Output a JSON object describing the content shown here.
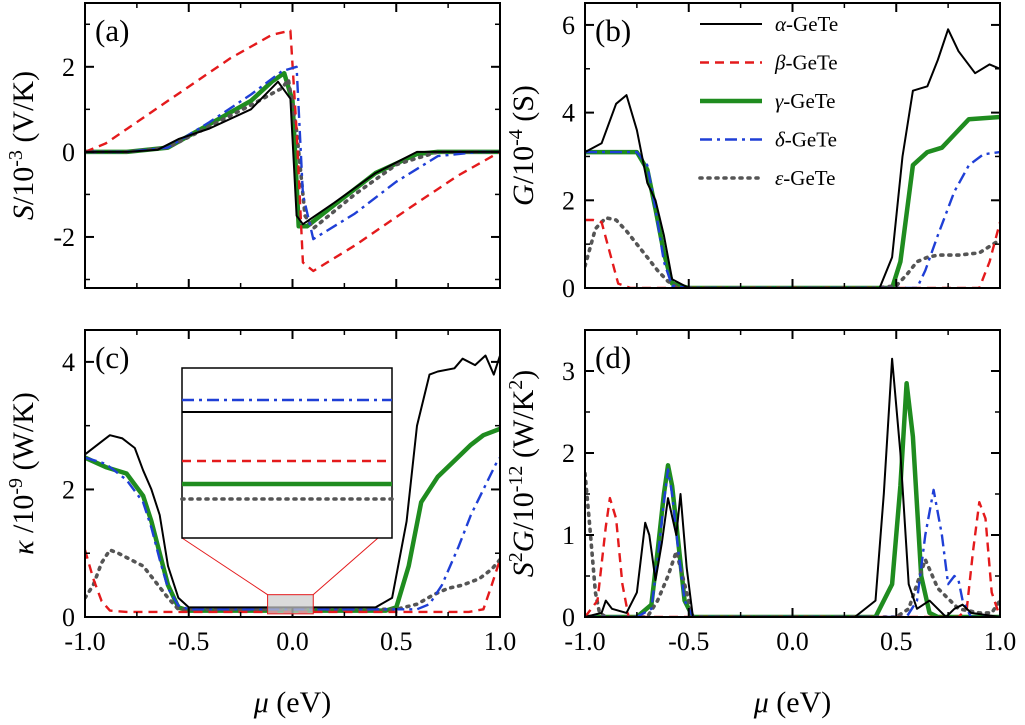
{
  "chart_data": [
    {
      "panel": "(a)",
      "type": "line",
      "ylabel_sym": "S",
      "ylabel_mid": "/10",
      "ylabel_exp": "-3",
      "ylabel_unit": " (V/K)",
      "xlim": [
        -1.0,
        1.0
      ],
      "ylim": [
        -3.2,
        3.5
      ],
      "xticks": [
        -1.0,
        -0.5,
        0.0,
        0.5,
        1.0
      ],
      "yticks": [
        -2,
        0,
        2
      ],
      "ytick_labels": [
        "-2",
        "0",
        "2"
      ],
      "series": [
        {
          "name": "α-GeTe",
          "color": "#000000",
          "x": [
            -1.0,
            -0.8,
            -0.65,
            -0.55,
            -0.4,
            -0.2,
            -0.07,
            -0.01,
            0.02,
            0.05,
            0.2,
            0.4,
            0.6,
            0.8,
            1.0
          ],
          "y": [
            0,
            0,
            0.05,
            0.3,
            0.55,
            1.0,
            1.65,
            1.25,
            -1.5,
            -1.7,
            -1.2,
            -0.5,
            0,
            0,
            0
          ]
        },
        {
          "name": "β-GeTe",
          "color": "#e41a1c",
          "x": [
            -1.0,
            -0.9,
            -0.6,
            -0.3,
            -0.1,
            -0.01,
            0.02,
            0.05,
            0.1,
            0.3,
            0.6,
            0.8,
            1.0
          ],
          "y": [
            0,
            0.2,
            1.2,
            2.2,
            2.75,
            2.85,
            0.5,
            -2.6,
            -2.8,
            -2.2,
            -1.2,
            -0.55,
            0
          ]
        },
        {
          "name": "γ-GeTe",
          "color": "#1f8c1f",
          "x": [
            -1.0,
            -0.8,
            -0.6,
            -0.4,
            -0.2,
            -0.1,
            -0.04,
            0.0,
            0.03,
            0.07,
            0.2,
            0.4,
            0.6,
            0.7,
            1.0
          ],
          "y": [
            0,
            0,
            0.1,
            0.65,
            1.2,
            1.65,
            1.85,
            1.2,
            -1.75,
            -1.75,
            -1.25,
            -0.5,
            -0.05,
            0,
            0
          ]
        },
        {
          "name": "δ-GeTe",
          "color": "#1f3fd6",
          "x": [
            -1.0,
            -0.8,
            -0.6,
            -0.4,
            -0.2,
            -0.05,
            0.02,
            0.05,
            0.1,
            0.3,
            0.5,
            0.7,
            0.9,
            1.0
          ],
          "y": [
            0,
            0,
            0.1,
            0.7,
            1.35,
            1.9,
            2.0,
            -1.0,
            -2.05,
            -1.45,
            -0.7,
            -0.1,
            0,
            0
          ]
        },
        {
          "name": "ε-GeTe",
          "color": "#555555",
          "x": [
            -1.0,
            -0.8,
            -0.6,
            -0.4,
            -0.2,
            -0.05,
            -0.02,
            0.02,
            0.06,
            0.1,
            0.3,
            0.5,
            0.7,
            0.8,
            1.0
          ],
          "y": [
            0,
            0,
            0.1,
            0.6,
            1.1,
            1.5,
            1.7,
            0.5,
            -1.5,
            -1.8,
            -1.0,
            -0.3,
            0,
            0,
            0
          ]
        }
      ]
    },
    {
      "panel": "(b)",
      "type": "line",
      "ylabel_sym": "G",
      "ylabel_mid": "/10",
      "ylabel_exp": "-4",
      "ylabel_unit": " (S)",
      "xlim": [
        -1.0,
        1.0
      ],
      "ylim": [
        0,
        6.5
      ],
      "xticks": [
        -1.0,
        -0.5,
        0.0,
        0.5,
        1.0
      ],
      "yticks": [
        0,
        2,
        4,
        6
      ],
      "ytick_labels": [
        "0",
        "2",
        "4",
        "6"
      ],
      "series": [
        {
          "name": "α-GeTe",
          "color": "#000000",
          "x": [
            -1.0,
            -0.92,
            -0.85,
            -0.8,
            -0.75,
            -0.7,
            -0.66,
            -0.62,
            -0.58,
            -0.5,
            0.3,
            0.42,
            0.48,
            0.53,
            0.58,
            0.65,
            0.7,
            0.75,
            0.8,
            0.88,
            0.95,
            1.0
          ],
          "y": [
            3.1,
            3.3,
            4.2,
            4.4,
            3.6,
            2.4,
            2.0,
            1.2,
            0.2,
            0,
            0,
            0,
            0.7,
            3.0,
            4.5,
            4.6,
            5.2,
            5.9,
            5.4,
            4.9,
            5.1,
            5.0
          ]
        },
        {
          "name": "β-GeTe",
          "color": "#e41a1c",
          "x": [
            -1.0,
            -0.96,
            -0.92,
            -0.88,
            -0.84,
            -0.78,
            -0.5,
            0.9,
            0.95,
            1.0
          ],
          "y": [
            1.55,
            1.55,
            1.5,
            0.8,
            0.1,
            0,
            0,
            0,
            0.6,
            1.5
          ]
        },
        {
          "name": "γ-GeTe",
          "color": "#1f8c1f",
          "x": [
            -1.0,
            -0.9,
            -0.75,
            -0.7,
            -0.66,
            -0.62,
            -0.58,
            -0.5,
            0.4,
            0.48,
            0.52,
            0.58,
            0.65,
            0.72,
            0.78,
            0.85,
            1.0
          ],
          "y": [
            3.1,
            3.1,
            3.1,
            2.7,
            1.8,
            0.8,
            0.1,
            0,
            0,
            0,
            0.6,
            2.8,
            3.1,
            3.2,
            3.5,
            3.85,
            3.9
          ]
        },
        {
          "name": "δ-GeTe",
          "color": "#1f3fd6",
          "x": [
            -1.0,
            -0.9,
            -0.75,
            -0.7,
            -0.66,
            -0.62,
            -0.58,
            -0.5,
            0.55,
            0.6,
            0.64,
            0.7,
            0.78,
            0.85,
            0.92,
            1.0
          ],
          "y": [
            3.1,
            3.1,
            3.1,
            2.8,
            1.8,
            0.6,
            0.05,
            0,
            0,
            0,
            0.4,
            1.2,
            2.2,
            2.8,
            3.05,
            3.1
          ]
        },
        {
          "name": "ε-GeTe",
          "color": "#555555",
          "x": [
            -1.0,
            -0.95,
            -0.9,
            -0.85,
            -0.8,
            -0.75,
            -0.7,
            -0.65,
            -0.6,
            -0.55,
            0.4,
            0.5,
            0.55,
            0.6,
            0.65,
            0.7,
            0.8,
            0.9,
            1.0
          ],
          "y": [
            0.5,
            1.35,
            1.6,
            1.55,
            1.3,
            1.0,
            0.7,
            0.4,
            0.15,
            0,
            0,
            0.05,
            0.3,
            0.6,
            0.7,
            0.75,
            0.75,
            0.8,
            1.1
          ]
        }
      ]
    },
    {
      "panel": "(c)",
      "type": "line",
      "ylabel_sym": "κ",
      "ylabel_mid": " /10",
      "ylabel_exp": "-9",
      "ylabel_unit": " (W/K)",
      "xlim": [
        -1.0,
        1.0
      ],
      "ylim": [
        0,
        4.5
      ],
      "xticks": [
        -1.0,
        -0.5,
        0.0,
        0.5,
        1.0
      ],
      "yticks": [
        0,
        2,
        4
      ],
      "ytick_labels": [
        "0",
        "2",
        "4"
      ],
      "series": [
        {
          "name": "α-GeTe",
          "color": "#000000",
          "x": [
            -1.0,
            -0.92,
            -0.88,
            -0.82,
            -0.76,
            -0.72,
            -0.68,
            -0.64,
            -0.6,
            -0.55,
            -0.5,
            0.4,
            0.48,
            0.55,
            0.6,
            0.66,
            0.7,
            0.78,
            0.82,
            0.88,
            0.93,
            0.97,
            1.0
          ],
          "y": [
            2.55,
            2.75,
            2.85,
            2.8,
            2.65,
            2.3,
            2.0,
            1.6,
            0.8,
            0.3,
            0.15,
            0.15,
            0.3,
            1.5,
            3.0,
            3.8,
            3.85,
            3.9,
            4.05,
            3.95,
            4.1,
            3.8,
            4.1
          ]
        },
        {
          "name": "β-GeTe",
          "color": "#e41a1c",
          "x": [
            -1.0,
            -0.96,
            -0.92,
            -0.88,
            -0.8,
            -0.5,
            0.5,
            0.85,
            0.92,
            0.96,
            1.0
          ],
          "y": [
            1.05,
            0.6,
            0.25,
            0.1,
            0.08,
            0.08,
            0.08,
            0.08,
            0.12,
            0.5,
            0.9
          ]
        },
        {
          "name": "γ-GeTe",
          "color": "#1f8c1f",
          "x": [
            -1.0,
            -0.9,
            -0.8,
            -0.72,
            -0.68,
            -0.64,
            -0.6,
            -0.55,
            -0.5,
            0.45,
            0.5,
            0.56,
            0.62,
            0.7,
            0.78,
            0.86,
            0.92,
            1.0
          ],
          "y": [
            2.5,
            2.35,
            2.25,
            1.9,
            1.5,
            1.0,
            0.5,
            0.15,
            0.1,
            0.1,
            0.15,
            0.8,
            1.8,
            2.2,
            2.45,
            2.7,
            2.85,
            2.95
          ]
        },
        {
          "name": "δ-GeTe",
          "color": "#1f3fd6",
          "x": [
            -1.0,
            -0.9,
            -0.8,
            -0.72,
            -0.68,
            -0.64,
            -0.6,
            -0.55,
            -0.5,
            0.6,
            0.66,
            0.72,
            0.8,
            0.86,
            0.92,
            0.98,
            1.0
          ],
          "y": [
            2.5,
            2.4,
            2.15,
            1.8,
            1.4,
            0.9,
            0.45,
            0.18,
            0.12,
            0.12,
            0.2,
            0.5,
            1.1,
            1.6,
            2.0,
            2.4,
            2.5
          ]
        },
        {
          "name": "ε-GeTe",
          "color": "#555555",
          "x": [
            -1.0,
            -0.96,
            -0.92,
            -0.88,
            -0.84,
            -0.78,
            -0.72,
            -0.66,
            -0.6,
            -0.55,
            0.4,
            0.5,
            0.6,
            0.68,
            0.75,
            0.82,
            0.9,
            0.96,
            1.0
          ],
          "y": [
            0.3,
            0.5,
            0.85,
            1.05,
            1.0,
            0.9,
            0.8,
            0.55,
            0.3,
            0.12,
            0.12,
            0.12,
            0.2,
            0.35,
            0.45,
            0.5,
            0.6,
            0.75,
            0.9
          ]
        }
      ],
      "inset": {
        "zoom_x": [
          -0.12,
          0.1
        ],
        "zoom_y": [
          0.05,
          0.35
        ],
        "line_order": [
          "δ-GeTe",
          "α-GeTe",
          "β-GeTe",
          "γ-GeTe",
          "ε-GeTe"
        ]
      }
    },
    {
      "panel": "(d)",
      "type": "line",
      "ylabel_sym": "S",
      "ylabel_sup2": "2",
      "ylabel_sym2": "G",
      "ylabel_mid": "/10",
      "ylabel_exp": "-12",
      "ylabel_unit": " (W/K",
      "ylabel_unit_sup": "2",
      "ylabel_unit_end": ")",
      "xlim": [
        -1.0,
        1.0
      ],
      "ylim": [
        0,
        3.5
      ],
      "xticks": [
        -1.0,
        -0.5,
        0.0,
        0.5,
        1.0
      ],
      "xtick_labels": [
        "-1.0",
        "-0.5",
        "0.0",
        "0.5",
        "1.0"
      ],
      "yticks": [
        0,
        1,
        2,
        3
      ],
      "ytick_labels": [
        "0",
        "1",
        "2",
        "3"
      ],
      "series": [
        {
          "name": "α-GeTe",
          "color": "#000000",
          "x": [
            -1.0,
            -0.92,
            -0.9,
            -0.87,
            -0.8,
            -0.75,
            -0.71,
            -0.69,
            -0.66,
            -0.63,
            -0.6,
            -0.56,
            -0.54,
            -0.51,
            -0.48,
            0.3,
            0.4,
            0.44,
            0.48,
            0.52,
            0.56,
            0.6,
            0.66,
            0.7,
            0.74,
            0.78,
            0.82,
            0.86,
            1.0
          ],
          "y": [
            0,
            0.05,
            0.2,
            0.1,
            0.05,
            0.3,
            1.15,
            1.0,
            0.45,
            0.9,
            1.45,
            1.0,
            1.5,
            0.6,
            0,
            0,
            0.2,
            1.5,
            3.15,
            2.0,
            0.4,
            0.1,
            0.2,
            0.1,
            0,
            0.1,
            0.15,
            0.05,
            0
          ]
        },
        {
          "name": "β-GeTe",
          "color": "#e41a1c",
          "x": [
            -1.0,
            -0.94,
            -0.9,
            -0.88,
            -0.85,
            -0.82,
            -0.79,
            -0.7,
            0.8,
            0.84,
            0.87,
            0.9,
            0.93,
            0.96,
            1.0
          ],
          "y": [
            0,
            0.2,
            1.1,
            1.45,
            1.2,
            0.4,
            0,
            0,
            0,
            0.1,
            0.8,
            1.4,
            1.2,
            0.3,
            0
          ]
        },
        {
          "name": "γ-GeTe",
          "color": "#1f8c1f",
          "x": [
            -1.0,
            -0.75,
            -0.68,
            -0.65,
            -0.62,
            -0.6,
            -0.58,
            -0.55,
            -0.52,
            -0.48,
            0.4,
            0.48,
            0.52,
            0.55,
            0.58,
            0.62,
            0.66,
            0.7,
            1.0
          ],
          "y": [
            0,
            0,
            0.15,
            0.8,
            1.5,
            1.85,
            1.6,
            0.9,
            0.2,
            0,
            0,
            0.4,
            1.6,
            2.85,
            2.2,
            0.5,
            0.05,
            0,
            0
          ]
        },
        {
          "name": "δ-GeTe",
          "color": "#1f3fd6",
          "x": [
            -1.0,
            -0.75,
            -0.68,
            -0.65,
            -0.62,
            -0.6,
            -0.58,
            -0.55,
            -0.52,
            -0.48,
            0.55,
            0.6,
            0.64,
            0.68,
            0.72,
            0.75,
            0.78,
            0.8,
            0.82,
            0.86,
            1.0
          ],
          "y": [
            0,
            0,
            0.1,
            0.7,
            1.4,
            1.8,
            1.5,
            0.8,
            0.2,
            0,
            0,
            0.2,
            1.0,
            1.55,
            1.0,
            0.4,
            0.5,
            0.45,
            0.2,
            0,
            0
          ]
        },
        {
          "name": "ε-GeTe",
          "color": "#555555",
          "x": [
            -1.0,
            -0.98,
            -0.95,
            -0.93,
            -0.9,
            -0.85,
            -0.8,
            -0.7,
            -0.65,
            -0.6,
            -0.56,
            -0.52,
            -0.48,
            0.5,
            0.56,
            0.6,
            0.64,
            0.7,
            0.8,
            0.9,
            0.96,
            1.0
          ],
          "y": [
            1.75,
            1.2,
            0.3,
            0.05,
            0,
            0,
            0,
            0,
            0.2,
            0.5,
            0.8,
            0.4,
            0,
            0,
            0.1,
            0.4,
            0.7,
            0.35,
            0.1,
            0.05,
            0.05,
            0.2
          ]
        }
      ]
    }
  ],
  "xaxis": {
    "xtick_labels": [
      "-1.0",
      "-0.5",
      "0.0",
      "0.5",
      "1.0"
    ],
    "xlabel_sym": "μ",
    "xlabel_unit": " (eV)"
  },
  "legend": {
    "placement": "panel-b-top-right",
    "suffix": "-GeTe",
    "entries": [
      {
        "sym": "α",
        "color": "#000000",
        "style": "solid"
      },
      {
        "sym": "β",
        "color": "#e41a1c",
        "style": "dashed"
      },
      {
        "sym": "γ",
        "color": "#1f8c1f",
        "style": "solid-thick"
      },
      {
        "sym": "δ",
        "color": "#1f3fd6",
        "style": "dashdot"
      },
      {
        "sym": "ε",
        "color": "#555555",
        "style": "dotted"
      }
    ]
  }
}
